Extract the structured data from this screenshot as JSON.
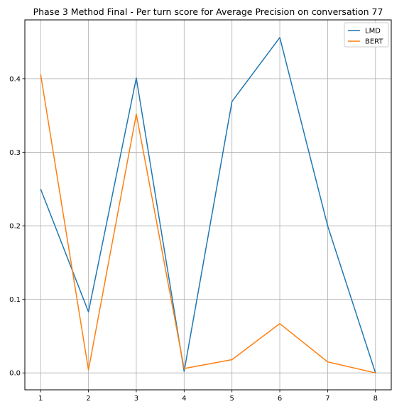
{
  "chart_data": {
    "type": "line",
    "title": "Phase 3 Method Final - Per turn score for Average Precision on conversation 77",
    "xlabel": "",
    "ylabel": "",
    "x": [
      1,
      2,
      3,
      4,
      5,
      6,
      7,
      8
    ],
    "xlim": [
      0.67,
      8.33
    ],
    "ylim": [
      -0.023,
      0.48
    ],
    "xticks": [
      1,
      2,
      3,
      4,
      5,
      6,
      7,
      8
    ],
    "yticks": [
      0.0,
      0.1,
      0.2,
      0.3,
      0.4
    ],
    "ytick_labels": [
      "0.0",
      "0.1",
      "0.2",
      "0.3",
      "0.4"
    ],
    "grid": true,
    "legend_position": "top-right",
    "series": [
      {
        "name": "LMD",
        "color": "#1f77b4",
        "values": [
          0.25,
          0.083,
          0.401,
          0.002,
          0.369,
          0.456,
          0.2,
          0.0
        ]
      },
      {
        "name": "BERT",
        "color": "#ff7f0e",
        "values": [
          0.406,
          0.004,
          0.352,
          0.006,
          0.018,
          0.067,
          0.015,
          0.0
        ]
      }
    ]
  }
}
